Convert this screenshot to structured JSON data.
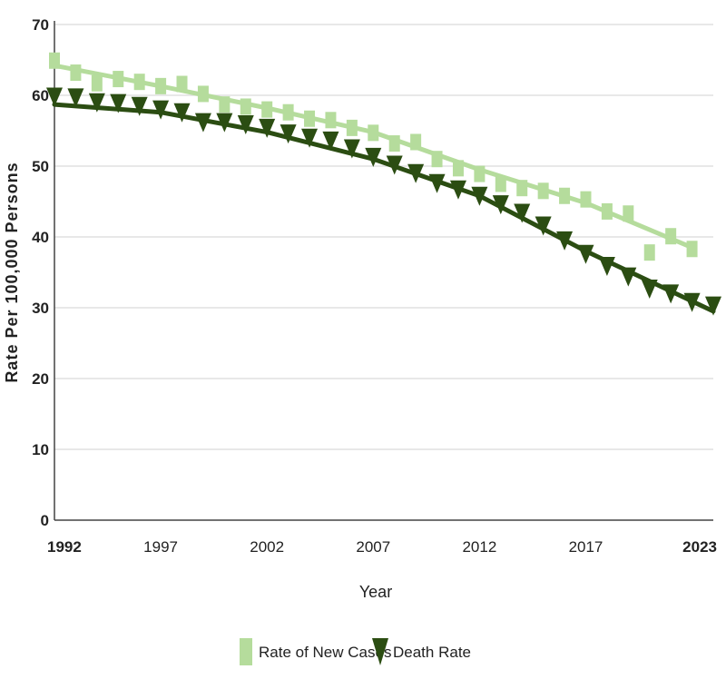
{
  "chart_data": {
    "type": "scatter",
    "xlabel": "Year",
    "ylabel": "Rate Per 100,000 Persons",
    "xlim": [
      1992,
      2023
    ],
    "ylim": [
      0,
      70
    ],
    "x_ticks": [
      {
        "value": 1992,
        "label": "1992",
        "bold": true
      },
      {
        "value": 1997,
        "label": "1997",
        "bold": false
      },
      {
        "value": 2002,
        "label": "2002",
        "bold": false
      },
      {
        "value": 2007,
        "label": "2007",
        "bold": false
      },
      {
        "value": 2012,
        "label": "2012",
        "bold": false
      },
      {
        "value": 2017,
        "label": "2017",
        "bold": false
      },
      {
        "value": 2023,
        "label": "2023",
        "bold": true
      }
    ],
    "y_ticks": [
      {
        "value": 0,
        "label": "0"
      },
      {
        "value": 10,
        "label": "10"
      },
      {
        "value": 20,
        "label": "20"
      },
      {
        "value": 30,
        "label": "30"
      },
      {
        "value": 40,
        "label": "40"
      },
      {
        "value": 50,
        "label": "50"
      },
      {
        "value": 60,
        "label": "60"
      },
      {
        "value": 70,
        "label": "70"
      }
    ],
    "grid": true,
    "legend_position": "bottom-center",
    "series": [
      {
        "name": "Rate of New Cases",
        "marker": "square",
        "color": "#b5dc9c",
        "trend_color": "#b5dc9c",
        "x": [
          1992,
          1993,
          1994,
          1995,
          1996,
          1997,
          1998,
          1999,
          2000,
          2001,
          2002,
          2003,
          2004,
          2005,
          2006,
          2007,
          2008,
          2009,
          2010,
          2011,
          2012,
          2013,
          2014,
          2015,
          2016,
          2017,
          2018,
          2019,
          2020,
          2021,
          2022
        ],
        "values": [
          64.9,
          63.2,
          61.7,
          62.3,
          61.9,
          61.3,
          61.6,
          60.2,
          58.7,
          58.4,
          58.0,
          57.6,
          56.7,
          56.5,
          55.4,
          54.7,
          53.2,
          53.4,
          51.0,
          49.7,
          48.9,
          47.5,
          46.9,
          46.5,
          45.8,
          45.3,
          43.6,
          43.3,
          37.8,
          40.1,
          38.3
        ],
        "trend_x": [
          1992,
          1997,
          2002,
          2007,
          2012,
          2017,
          2022
        ],
        "trend_y": [
          64.2,
          61.3,
          58.2,
          54.8,
          49.5,
          44.8,
          38.5
        ]
      },
      {
        "name": "Death Rate",
        "marker": "triangle-down",
        "color": "#2b4d12",
        "trend_color": "#2b4d12",
        "x": [
          1992,
          1993,
          1994,
          1995,
          1996,
          1997,
          1998,
          1999,
          2000,
          2001,
          2002,
          2003,
          2004,
          2005,
          2006,
          2007,
          2008,
          2009,
          2010,
          2011,
          2012,
          2013,
          2014,
          2015,
          2016,
          2017,
          2018,
          2019,
          2020,
          2021,
          2022,
          2023
        ],
        "values": [
          59.8,
          59.7,
          59.0,
          58.9,
          58.5,
          58.0,
          57.6,
          56.2,
          56.2,
          55.9,
          55.4,
          54.6,
          54.0,
          53.6,
          52.5,
          51.3,
          50.2,
          49.0,
          47.6,
          46.7,
          45.8,
          44.6,
          43.4,
          41.6,
          39.5,
          37.6,
          35.9,
          34.4,
          32.7,
          32.0,
          30.8,
          30.3
        ],
        "trend_x": [
          1992,
          1997,
          2002,
          2007,
          2012,
          2017,
          2023
        ],
        "trend_y": [
          58.7,
          57.6,
          54.8,
          51.0,
          45.8,
          38.0,
          29.5
        ]
      }
    ]
  }
}
